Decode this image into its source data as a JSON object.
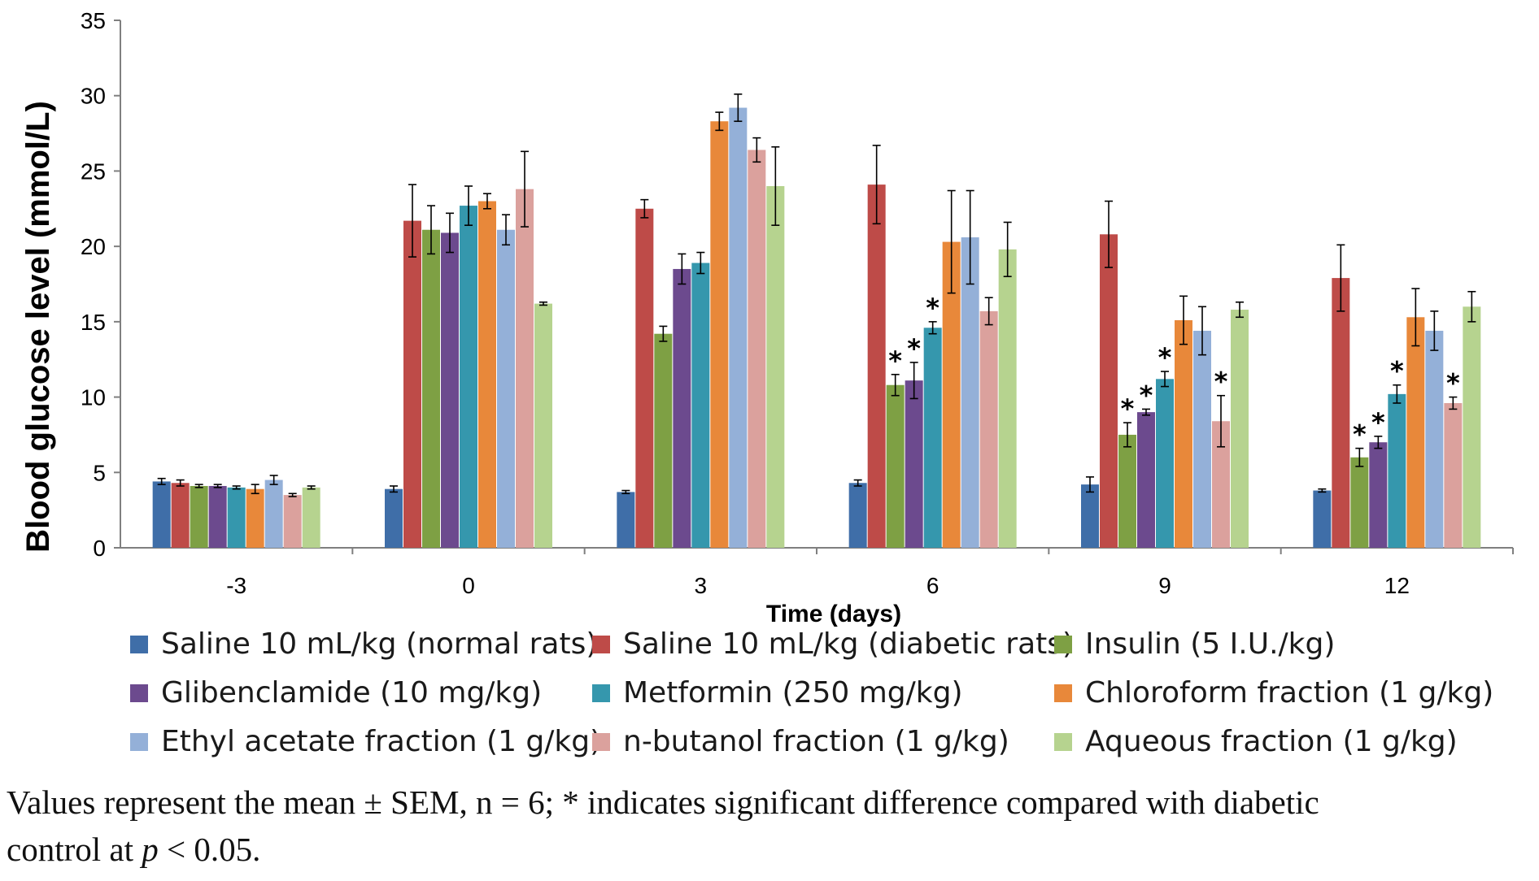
{
  "chart_data": {
    "type": "bar",
    "xlabel": "Time (days)",
    "ylabel": "Blood glucose level (mmol/L)",
    "ylim": [
      0,
      35
    ],
    "yticks": [
      0,
      5,
      10,
      15,
      20,
      25,
      30,
      35
    ],
    "categories": [
      "-3",
      "0",
      "3",
      "6",
      "9",
      "12"
    ],
    "series": [
      {
        "name": "Saline 10 mL/kg (normal rats)",
        "color": "#3f6ea8",
        "values": [
          4.4,
          3.9,
          3.7,
          4.3,
          4.2,
          3.8
        ],
        "errors": [
          0.2,
          0.2,
          0.1,
          0.2,
          0.5,
          0.1
        ],
        "sig": [
          false,
          false,
          false,
          false,
          false,
          false
        ]
      },
      {
        "name": "Saline 10 mL/kg (diabetic rats)",
        "color": "#be4b48",
        "values": [
          4.3,
          21.7,
          22.5,
          24.1,
          20.8,
          17.9
        ],
        "errors": [
          0.2,
          2.4,
          0.6,
          2.6,
          2.2,
          2.2
        ],
        "sig": [
          false,
          false,
          false,
          false,
          false,
          false
        ]
      },
      {
        "name": "Insulin (5 I.U./kg)",
        "color": "#7ea044",
        "values": [
          4.1,
          21.1,
          14.2,
          10.8,
          7.5,
          6.0
        ],
        "errors": [
          0.1,
          1.6,
          0.5,
          0.7,
          0.8,
          0.6
        ],
        "sig": [
          false,
          false,
          false,
          true,
          true,
          true
        ]
      },
      {
        "name": "Glibenclamide (10 mg/kg)",
        "color": "#6c4a8e",
        "values": [
          4.1,
          20.9,
          18.5,
          11.1,
          9.0,
          7.0
        ],
        "errors": [
          0.1,
          1.3,
          1.0,
          1.2,
          0.2,
          0.4
        ],
        "sig": [
          false,
          false,
          false,
          true,
          true,
          true
        ]
      },
      {
        "name": "Metformin (250 mg/kg)",
        "color": "#3597ad",
        "values": [
          4.0,
          22.7,
          18.9,
          14.6,
          11.2,
          10.2
        ],
        "errors": [
          0.1,
          1.3,
          0.7,
          0.4,
          0.5,
          0.6
        ],
        "sig": [
          false,
          false,
          false,
          true,
          true,
          true
        ]
      },
      {
        "name": "Chloroform fraction (1 g/kg)",
        "color": "#e8883a",
        "values": [
          3.9,
          23.0,
          28.3,
          20.3,
          15.1,
          15.3
        ],
        "errors": [
          0.3,
          0.5,
          0.6,
          3.4,
          1.6,
          1.9
        ],
        "sig": [
          false,
          false,
          false,
          false,
          false,
          false
        ]
      },
      {
        "name": "Ethyl acetate fraction (1 g/kg)",
        "color": "#94b0d8",
        "values": [
          4.5,
          21.1,
          29.2,
          20.6,
          14.4,
          14.4
        ],
        "errors": [
          0.3,
          1.0,
          0.9,
          3.1,
          1.6,
          1.3
        ],
        "sig": [
          false,
          false,
          false,
          false,
          false,
          false
        ]
      },
      {
        "name": "n-butanol fraction (1 g/kg)",
        "color": "#dba19d",
        "values": [
          3.5,
          23.8,
          26.4,
          15.7,
          8.4,
          9.6
        ],
        "errors": [
          0.1,
          2.5,
          0.8,
          0.9,
          1.7,
          0.4
        ],
        "sig": [
          false,
          false,
          false,
          false,
          true,
          true
        ]
      },
      {
        "name": "Aqueous fraction (1 g/kg)",
        "color": "#b6d38f",
        "values": [
          4.0,
          16.2,
          24.0,
          19.8,
          15.8,
          16.0
        ],
        "errors": [
          0.1,
          0.1,
          2.6,
          1.8,
          0.5,
          1.0
        ],
        "sig": [
          false,
          false,
          false,
          false,
          false,
          false
        ]
      }
    ],
    "significance_marker": "*",
    "legend_position": "bottom"
  },
  "caption": {
    "line1": "Values represent the mean ± SEM, n = 6; * indicates significant difference compared with diabetic",
    "line2_pre": "control at ",
    "line2_p": "p",
    "line2_post": " < 0.05."
  }
}
